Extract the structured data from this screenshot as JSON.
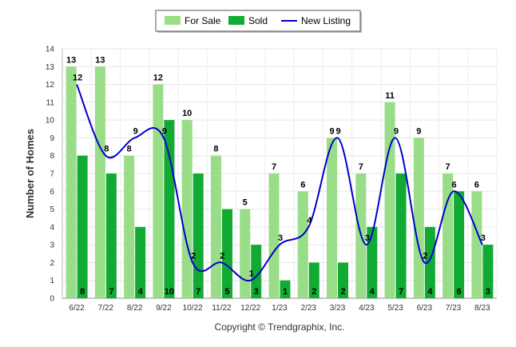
{
  "chart_data": {
    "type": "bar",
    "ylabel": "Number of Homes",
    "xlabel": "",
    "ylim": [
      0,
      14
    ],
    "yticks": [
      0,
      1,
      2,
      3,
      4,
      5,
      6,
      7,
      8,
      9,
      10,
      11,
      12,
      13,
      14
    ],
    "legend_position": "top-center",
    "categories": [
      "6/22",
      "7/22",
      "8/22",
      "9/22",
      "10/22",
      "11/22",
      "12/22",
      "1/23",
      "2/23",
      "3/23",
      "4/23",
      "5/23",
      "6/23",
      "7/23",
      "8/23"
    ],
    "series": [
      {
        "name": "For Sale",
        "kind": "bar",
        "color": "#99dd88",
        "values": [
          13,
          13,
          8,
          12,
          10,
          8,
          5,
          7,
          6,
          9,
          7,
          11,
          9,
          7,
          6
        ]
      },
      {
        "name": "Sold",
        "kind": "bar",
        "color": "#11aa33",
        "values": [
          8,
          7,
          4,
          10,
          7,
          5,
          3,
          1,
          2,
          2,
          4,
          7,
          4,
          6,
          3
        ]
      },
      {
        "name": "New Listing",
        "kind": "line",
        "color": "#0000cc",
        "values": [
          12,
          8,
          9,
          9,
          2,
          2,
          1,
          3,
          4,
          9,
          3,
          9,
          2,
          6,
          3
        ]
      }
    ],
    "copyright": "Copyright © Trendgraphix, Inc."
  }
}
